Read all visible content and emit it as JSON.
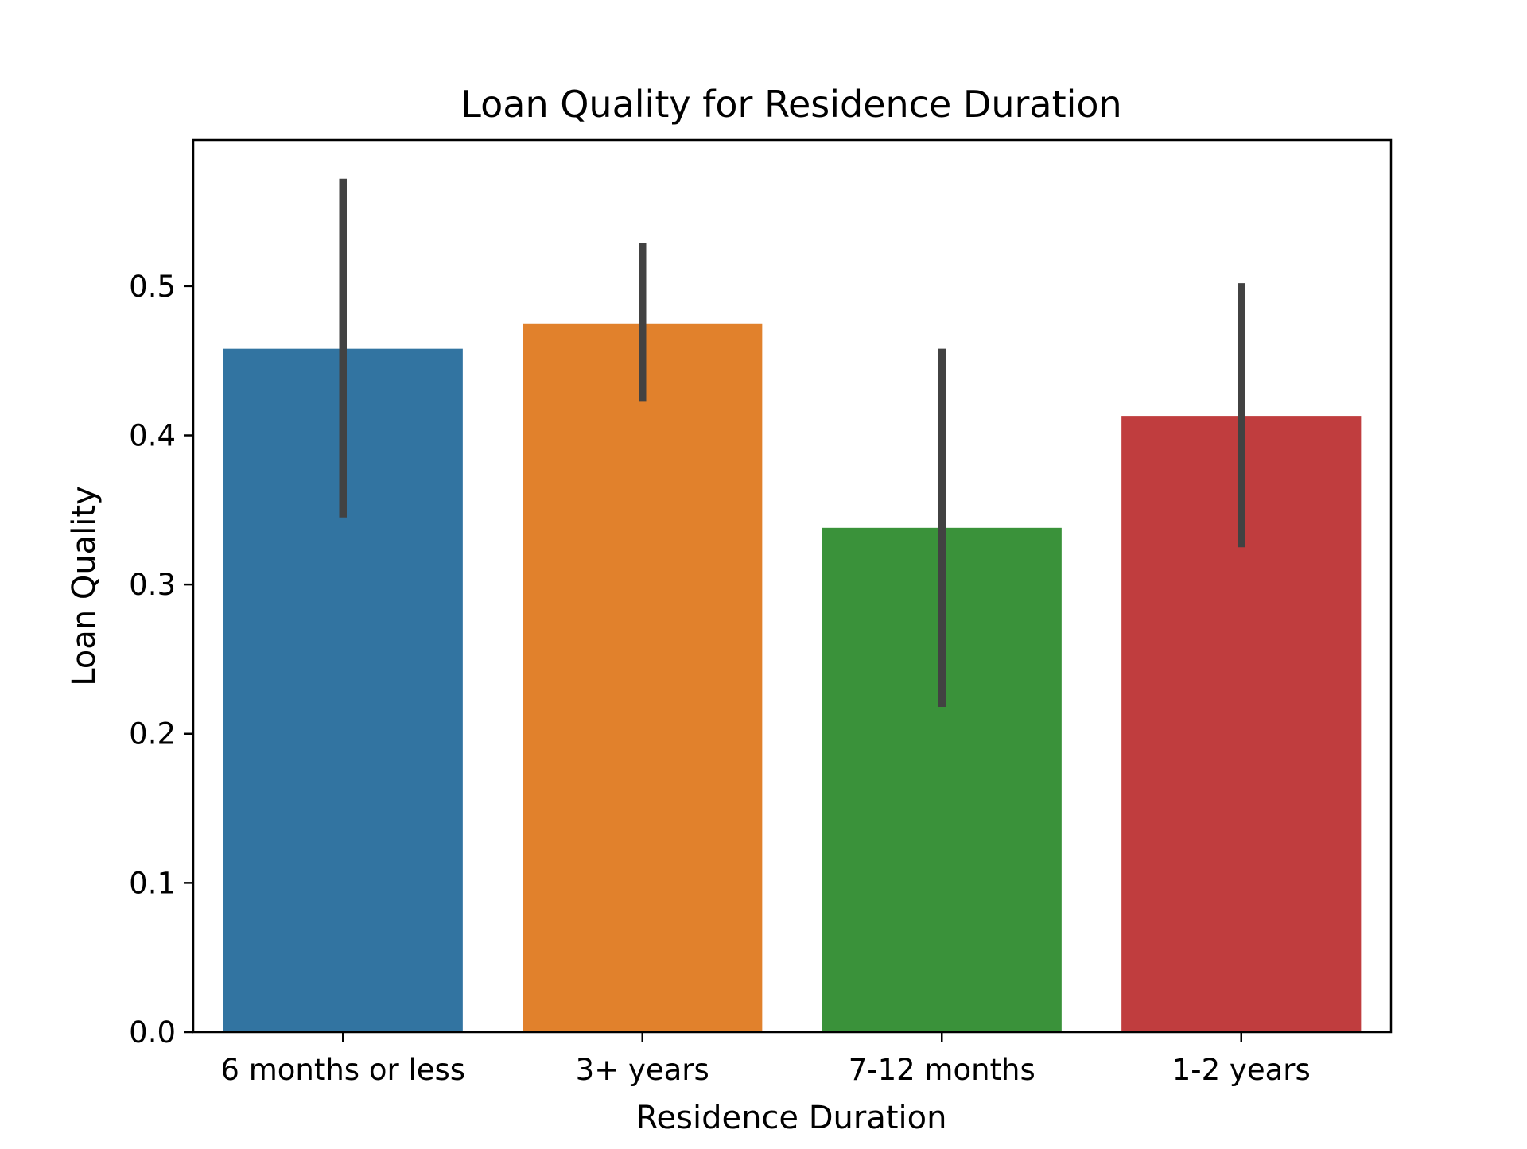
{
  "chart_data": {
    "type": "bar",
    "title": "Loan Quality for Residence Duration",
    "xlabel": "Residence Duration",
    "ylabel": "Loan Quality",
    "categories": [
      "6 months or less",
      "3+ years",
      "7-12 months",
      "1-2 years"
    ],
    "values": [
      0.458,
      0.475,
      0.338,
      0.413
    ],
    "error_bars": [
      [
        0.345,
        0.572
      ],
      [
        0.423,
        0.529
      ],
      [
        0.218,
        0.458
      ],
      [
        0.325,
        0.502
      ]
    ],
    "colors": [
      "#3274a1",
      "#e1812c",
      "#3a923a",
      "#c03d3e"
    ],
    "error_color": "#424242",
    "ylim": [
      0,
      0.598
    ],
    "yticks": [
      0.0,
      0.1,
      0.2,
      0.3,
      0.4,
      0.5
    ],
    "ytick_labels": [
      "0.0",
      "0.1",
      "0.2",
      "0.3",
      "0.4",
      "0.5"
    ],
    "grid": false,
    "legend": "none"
  }
}
